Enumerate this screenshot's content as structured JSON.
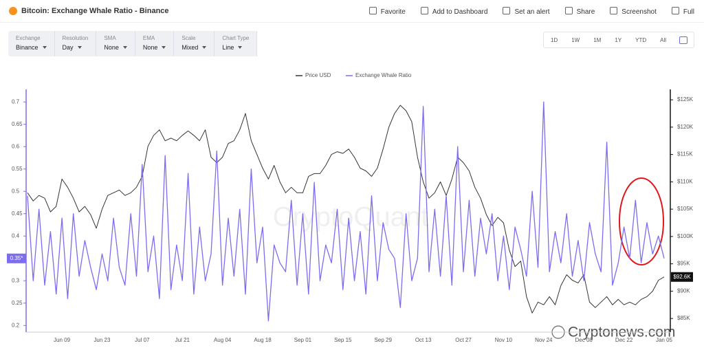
{
  "header": {
    "title": "Bitcoin: Exchange Whale Ratio - Binance",
    "actions": [
      "Favorite",
      "Add to Dashboard",
      "Set an alert",
      "Share",
      "Screenshot",
      "Full"
    ]
  },
  "filters": [
    {
      "label": "Exchange",
      "value": "Binance"
    },
    {
      "label": "Resolution",
      "value": "Day"
    },
    {
      "label": "SMA",
      "value": "None"
    },
    {
      "label": "EMA",
      "value": "None"
    },
    {
      "label": "Scale",
      "value": "Mixed"
    },
    {
      "label": "Chart Type",
      "value": "Line"
    }
  ],
  "ranges": [
    "1D",
    "1W",
    "1M",
    "1Y",
    "YTD",
    "All"
  ],
  "chart_data": {
    "type": "line",
    "watermarks": [
      "CryptoQuant",
      "Cryptonews.com"
    ],
    "categories": [
      null,
      null,
      null,
      null,
      null,
      null,
      "Jun 09",
      null,
      null,
      null,
      null,
      null,
      null,
      "Jun 23",
      null,
      null,
      null,
      null,
      null,
      null,
      "Jul 07",
      null,
      null,
      null,
      null,
      null,
      null,
      "Jul 21",
      null,
      null,
      null,
      null,
      null,
      null,
      "Aug 04",
      null,
      null,
      null,
      null,
      null,
      null,
      "Aug 18",
      null,
      null,
      null,
      null,
      null,
      null,
      "Sep 01",
      null,
      null,
      null,
      null,
      null,
      null,
      "Sep 15",
      null,
      null,
      null,
      null,
      null,
      null,
      "Sep 29",
      null,
      null,
      null,
      null,
      null,
      null,
      "Oct 13",
      null,
      null,
      null,
      null,
      null,
      null,
      "Oct 27",
      null,
      null,
      null,
      null,
      null,
      null,
      "Nov 10",
      null,
      null,
      null,
      null,
      null,
      null,
      "Nov 24",
      null,
      null,
      null,
      null,
      null,
      null,
      "Dec 08",
      null,
      null,
      null,
      null,
      null,
      null,
      "Dec 22",
      null,
      null,
      null,
      null,
      null,
      null,
      "Jan 05"
    ],
    "ylim": [
      0.185,
      0.728
    ],
    "yticks": [
      0.2,
      0.25,
      0.3,
      0.35,
      0.4,
      0.45,
      0.5,
      0.55,
      0.6,
      0.65,
      0.7
    ],
    "y2lim": [
      82500,
      126900
    ],
    "y2ticks": [
      {
        "value": 85000,
        "label": "$85K"
      },
      {
        "value": 90000,
        "label": "$90K"
      },
      {
        "value": 95000,
        "label": "$95K"
      },
      {
        "value": 100000,
        "label": "$100K"
      },
      {
        "value": 105000,
        "label": "$105K"
      },
      {
        "value": 110000,
        "label": "$110K"
      },
      {
        "value": 115000,
        "label": "$115K"
      },
      {
        "value": 120000,
        "label": "$120K"
      },
      {
        "value": 125000,
        "label": "$125K"
      }
    ],
    "grid": false,
    "series": [
      {
        "name": "Price USD",
        "color": "#333333",
        "axis": "y2",
        "last_label": "$92.6K",
        "values": [
          108000,
          106500,
          107500,
          107000,
          104500,
          105500,
          110500,
          109000,
          107000,
          104500,
          105500,
          104000,
          101500,
          105000,
          107500,
          108000,
          108500,
          107500,
          108000,
          109000,
          111000,
          116500,
          118500,
          119500,
          117500,
          118000,
          117500,
          118500,
          119300,
          118500,
          117500,
          119500,
          114500,
          113500,
          114500,
          117000,
          117500,
          119500,
          122500,
          117500,
          115000,
          112500,
          110500,
          113000,
          110000,
          108000,
          109000,
          108000,
          108000,
          111000,
          111500,
          111500,
          113000,
          115000,
          115500,
          115200,
          116000,
          114500,
          112500,
          112000,
          111000,
          112500,
          116000,
          120000,
          122500,
          124000,
          123000,
          121000,
          114500,
          110000,
          107000,
          108000,
          110000,
          107500,
          110500,
          114500,
          113500,
          112000,
          109000,
          107000,
          104000,
          102000,
          103500,
          102500,
          97500,
          94500,
          95500,
          89000,
          86000,
          88000,
          87500,
          89000,
          87500,
          91000,
          93000,
          92000,
          91500,
          93000,
          88000,
          87000,
          88000,
          89000,
          87500,
          88500,
          87500,
          88000,
          87500,
          88500,
          89000,
          90000,
          92000,
          92600
        ]
      },
      {
        "name": "Exchange Whale Ratio",
        "color": "#7b6cf0",
        "last_label": "0.35*",
        "values": [
          0.49,
          0.3,
          0.46,
          0.29,
          0.41,
          0.27,
          0.44,
          0.26,
          0.45,
          0.31,
          0.39,
          0.33,
          0.28,
          0.36,
          0.3,
          0.44,
          0.33,
          0.29,
          0.45,
          0.31,
          0.56,
          0.32,
          0.4,
          0.26,
          0.58,
          0.28,
          0.38,
          0.3,
          0.54,
          0.27,
          0.42,
          0.3,
          0.36,
          0.59,
          0.29,
          0.44,
          0.31,
          0.46,
          0.27,
          0.55,
          0.34,
          0.42,
          0.21,
          0.38,
          0.34,
          0.32,
          0.48,
          0.29,
          0.45,
          0.27,
          0.52,
          0.3,
          0.38,
          0.34,
          0.46,
          0.28,
          0.44,
          0.3,
          0.41,
          0.27,
          0.49,
          0.3,
          0.43,
          0.37,
          0.35,
          0.24,
          0.45,
          0.3,
          0.35,
          0.69,
          0.32,
          0.46,
          0.31,
          0.49,
          0.29,
          0.6,
          0.32,
          0.48,
          0.31,
          0.44,
          0.36,
          0.45,
          0.3,
          0.4,
          0.28,
          0.42,
          0.37,
          0.31,
          0.5,
          0.33,
          0.7,
          0.32,
          0.41,
          0.34,
          0.45,
          0.31,
          0.39,
          0.3,
          0.43,
          0.36,
          0.32,
          0.61,
          0.29,
          0.34,
          0.42,
          0.35,
          0.48,
          0.34,
          0.43,
          0.36,
          0.4,
          0.35
        ]
      }
    ]
  }
}
